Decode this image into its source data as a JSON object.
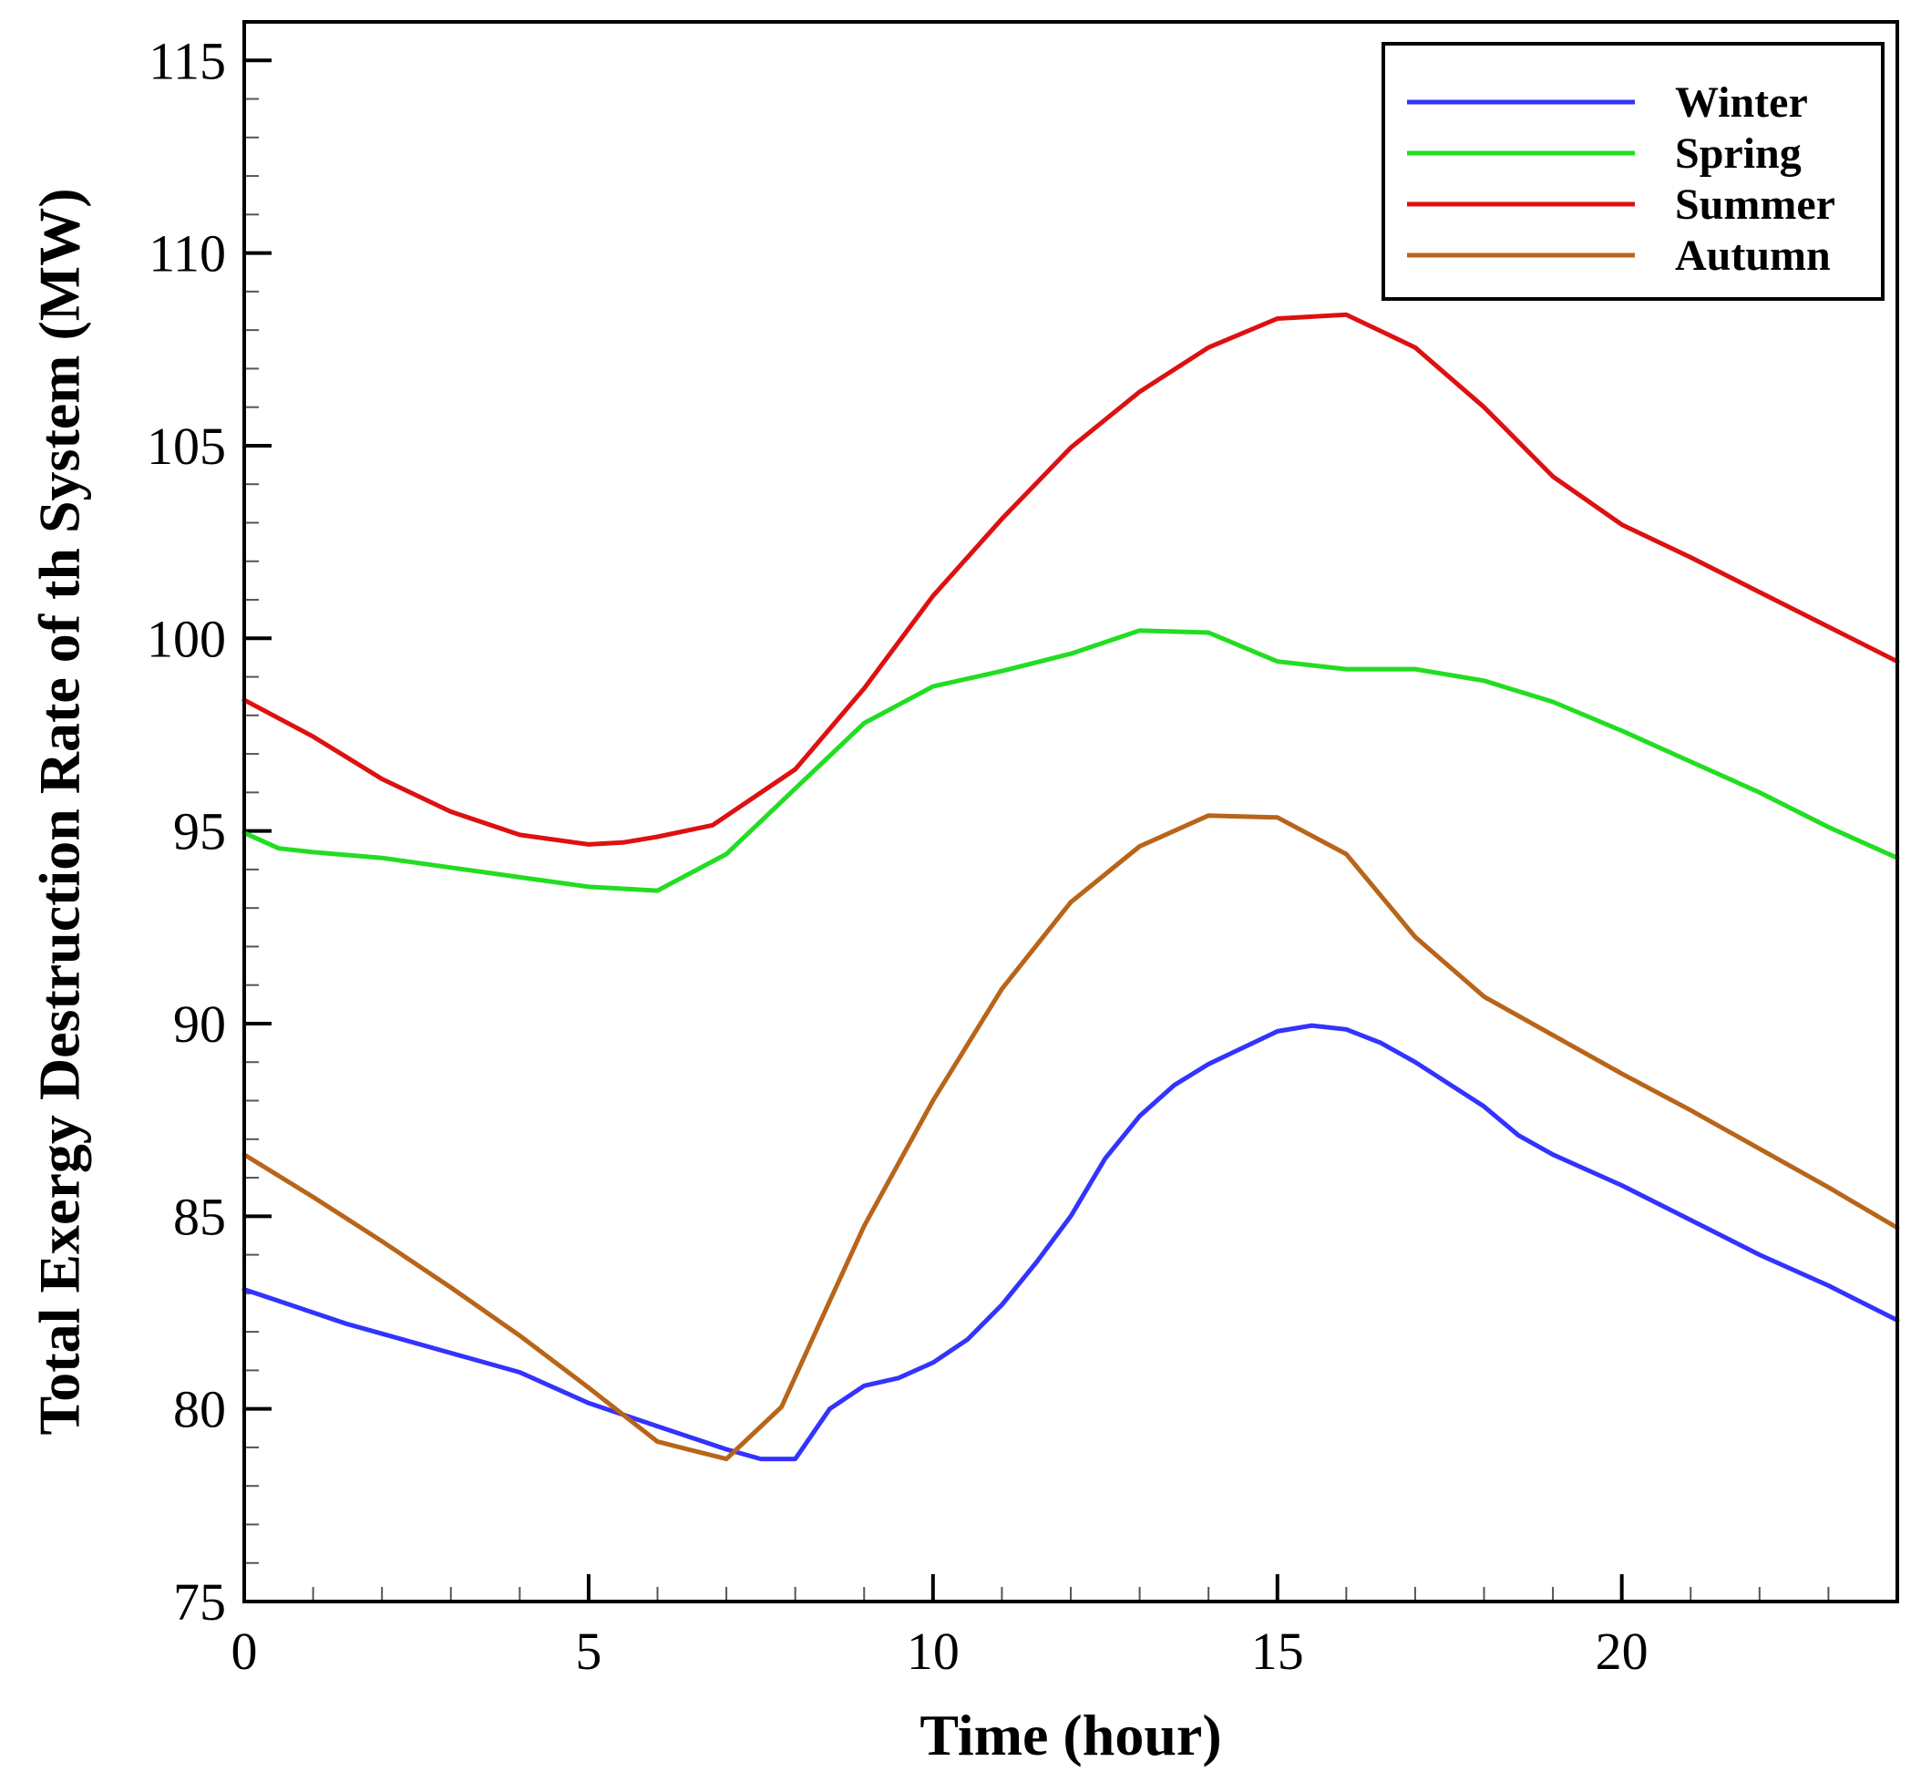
{
  "chart_data": {
    "type": "line",
    "title": "",
    "xlabel": "Time (hour)",
    "ylabel": "Total Exergy Destruction Rate of th System (MW)",
    "xlim": [
      0,
      24
    ],
    "ylim": [
      75,
      116
    ],
    "x_ticks": [
      0,
      5,
      10,
      15,
      20
    ],
    "y_ticks": [
      75,
      80,
      85,
      90,
      95,
      100,
      105,
      110,
      115
    ],
    "grid": false,
    "legend_position": "top-right",
    "series": [
      {
        "name": "Winter",
        "color": "#3333ff",
        "points": [
          [
            0,
            83.1
          ],
          [
            0.5,
            82.8
          ],
          [
            1,
            82.5
          ],
          [
            1.5,
            82.2
          ],
          [
            2,
            81.95
          ],
          [
            3,
            81.45
          ],
          [
            4,
            80.95
          ],
          [
            5,
            80.15
          ],
          [
            6,
            79.55
          ],
          [
            7,
            78.95
          ],
          [
            7.5,
            78.7
          ],
          [
            8,
            78.7
          ],
          [
            8.5,
            80.0
          ],
          [
            9,
            80.6
          ],
          [
            9.5,
            80.8
          ],
          [
            10,
            81.2
          ],
          [
            10.5,
            81.8
          ],
          [
            11,
            82.7
          ],
          [
            11.5,
            83.8
          ],
          [
            12,
            85.0
          ],
          [
            12.5,
            86.5
          ],
          [
            13,
            87.6
          ],
          [
            13.5,
            88.4
          ],
          [
            14,
            88.95
          ],
          [
            15,
            89.8
          ],
          [
            15.5,
            89.95
          ],
          [
            16,
            89.85
          ],
          [
            16.5,
            89.5
          ],
          [
            17,
            89.0
          ],
          [
            18,
            87.85
          ],
          [
            18.5,
            87.1
          ],
          [
            19,
            86.6
          ],
          [
            20,
            85.8
          ],
          [
            21,
            84.9
          ],
          [
            22,
            84.0
          ],
          [
            23,
            83.2
          ],
          [
            24,
            82.3
          ]
        ]
      },
      {
        "name": "Spring",
        "color": "#22dd22",
        "points": [
          [
            0,
            94.95
          ],
          [
            0.5,
            94.55
          ],
          [
            1,
            94.45
          ],
          [
            2,
            94.3
          ],
          [
            3,
            94.05
          ],
          [
            4,
            93.8
          ],
          [
            5,
            93.55
          ],
          [
            6,
            93.45
          ],
          [
            7,
            94.4
          ],
          [
            8,
            96.1
          ],
          [
            9,
            97.8
          ],
          [
            10,
            98.75
          ],
          [
            11,
            99.15
          ],
          [
            12,
            99.6
          ],
          [
            13,
            100.2
          ],
          [
            14,
            100.15
          ],
          [
            15,
            99.4
          ],
          [
            16,
            99.2
          ],
          [
            17,
            99.2
          ],
          [
            18,
            98.9
          ],
          [
            19,
            98.35
          ],
          [
            20,
            97.6
          ],
          [
            21,
            96.8
          ],
          [
            22,
            96.0
          ],
          [
            23,
            95.1
          ],
          [
            24,
            94.3
          ]
        ]
      },
      {
        "name": "Summer",
        "color": "#dd1111",
        "points": [
          [
            0,
            98.4
          ],
          [
            1,
            97.45
          ],
          [
            2,
            96.35
          ],
          [
            3,
            95.5
          ],
          [
            4,
            94.9
          ],
          [
            5,
            94.65
          ],
          [
            5.5,
            94.7
          ],
          [
            6,
            94.85
          ],
          [
            6.8,
            95.15
          ],
          [
            8,
            96.6
          ],
          [
            9,
            98.7
          ],
          [
            10,
            101.1
          ],
          [
            11,
            103.1
          ],
          [
            12,
            104.95
          ],
          [
            13,
            106.4
          ],
          [
            14,
            107.55
          ],
          [
            15,
            108.3
          ],
          [
            16,
            108.4
          ],
          [
            17,
            107.55
          ],
          [
            18,
            106.0
          ],
          [
            19,
            104.2
          ],
          [
            20,
            102.95
          ],
          [
            21,
            102.1
          ],
          [
            22,
            101.2
          ],
          [
            23,
            100.3
          ],
          [
            24,
            99.4
          ]
        ]
      },
      {
        "name": "Autumn",
        "color": "#b8651a",
        "points": [
          [
            0,
            86.6
          ],
          [
            1,
            85.5
          ],
          [
            2,
            84.35
          ],
          [
            3,
            83.15
          ],
          [
            4,
            81.9
          ],
          [
            5,
            80.55
          ],
          [
            6,
            79.15
          ],
          [
            7,
            78.7
          ],
          [
            7.8,
            80.05
          ],
          [
            8.5,
            82.8
          ],
          [
            9,
            84.75
          ],
          [
            10,
            88.0
          ],
          [
            11,
            90.9
          ],
          [
            12,
            93.15
          ],
          [
            13,
            94.6
          ],
          [
            14,
            95.4
          ],
          [
            15,
            95.35
          ],
          [
            16,
            94.4
          ],
          [
            17,
            92.25
          ],
          [
            18,
            90.7
          ],
          [
            19,
            89.7
          ],
          [
            20,
            88.7
          ],
          [
            21,
            87.75
          ],
          [
            22,
            86.75
          ],
          [
            23,
            85.75
          ],
          [
            24,
            84.7
          ]
        ]
      }
    ]
  }
}
